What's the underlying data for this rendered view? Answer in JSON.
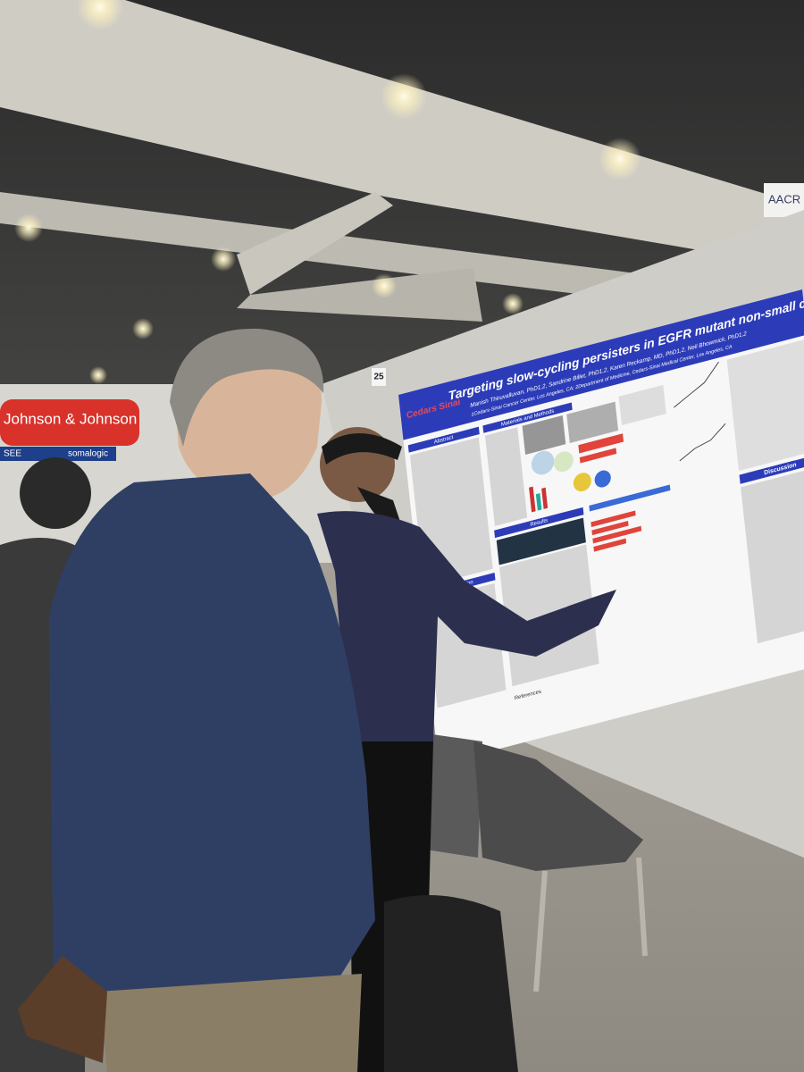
{
  "signs": {
    "sponsor_1": "Johnson & Johnson",
    "sponsor_2": "somalogic",
    "sponsor_3": "SEE",
    "aacr": "AACR",
    "board_number": "25"
  },
  "poster": {
    "logo": "Cedars Sinai",
    "title": "Targeting slow-cycling persisters in EGFR mutant non-small cell lung cancer",
    "authors": "Manish Thiruvalluvan, PhD1,2, Sandrine Billet, PhD1,2, Karen Reckamp, MD, PhD1,2, Neil Bhowmick, PhD1,2",
    "affiliations": "1Cedars-Sinai Cancer Center, Los Angeles, CA; 2Department of Medicine, Cedars-Sinai Medical Center, Los Angeles, CA",
    "sections": [
      "Abstract",
      "Materials and Methods",
      "Results",
      "Introduction",
      "Discussion",
      "References"
    ]
  }
}
